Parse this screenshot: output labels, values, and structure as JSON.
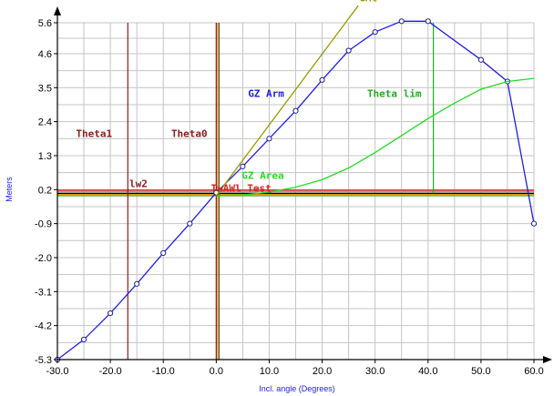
{
  "chart_data": {
    "type": "line",
    "xlabel": "Incl. angle (Degrees)",
    "ylabel": "Meters",
    "xlim": [
      -30,
      60
    ],
    "ylim": [
      -5.3,
      5.6
    ],
    "grid": true,
    "x_ticks": [
      "-30.0",
      "-20.0",
      "-10.0",
      "0.0",
      "10.0",
      "20.0",
      "30.0",
      "40.0",
      "50.0",
      "60.0"
    ],
    "y_ticks": [
      "-5.3",
      "-4.2",
      "-3.1",
      "-2.0",
      "-0.9",
      "0.2",
      "1.3",
      "2.4",
      "3.5",
      "4.6",
      "5.6"
    ],
    "series": [
      {
        "name": "GZ Arm",
        "color": "#1f1fe6",
        "markers": true,
        "x": [
          -30,
          -25,
          -20,
          -15,
          -10,
          -5,
          0,
          5,
          10,
          15,
          20,
          25,
          30,
          35,
          40,
          50,
          55,
          60
        ],
        "y": [
          -5.3,
          -4.65,
          -3.8,
          -2.85,
          -1.85,
          -0.9,
          0.1,
          0.95,
          1.85,
          2.75,
          3.75,
          4.7,
          5.3,
          5.65,
          5.65,
          4.4,
          3.7,
          -0.9
        ]
      },
      {
        "name": "GZ Area",
        "color": "#22dd22",
        "markers": false,
        "x": [
          0,
          5,
          10,
          15,
          20,
          25,
          30,
          35,
          40,
          45,
          50,
          55,
          60
        ],
        "y": [
          0.0,
          0.03,
          0.12,
          0.28,
          0.52,
          0.9,
          1.4,
          1.95,
          2.5,
          3.0,
          3.45,
          3.7,
          3.8
        ]
      },
      {
        "name": "GMt",
        "color": "#999900",
        "markers": false,
        "x": [
          0,
          26.8
        ],
        "y": [
          0.0,
          6.15
        ]
      }
    ],
    "vertical_lines": [
      {
        "name": "Theta1",
        "x": -16.7,
        "color": "#8b1a1a"
      },
      {
        "name": "Theta0",
        "x": 0.0,
        "color": "#8b1a1a"
      },
      {
        "name": "Theta lim",
        "x": 41.0,
        "color": "#22aa22"
      },
      {
        "name": "axis-0",
        "x": 0.3,
        "color": "#cc7700"
      },
      {
        "name": "axis-1",
        "x": 0.55,
        "color": "#556b2f"
      }
    ],
    "horizontal_lines": [
      {
        "name": "lw2",
        "y": 0.18,
        "color": "#dd2222"
      },
      {
        "name": "lw1",
        "y": 0.14,
        "color": "#d48a8a"
      },
      {
        "name": "black",
        "y": 0.08,
        "color": "#000000"
      },
      {
        "name": "orange",
        "y": 0.04,
        "color": "#dd9900"
      },
      {
        "name": "green",
        "y": 0.0,
        "color": "#66aa66"
      }
    ],
    "annotations": [
      {
        "text": "GMt",
        "x": 27.0,
        "y": 6.3,
        "color": "#999900"
      },
      {
        "text": "GZ Arm",
        "x": 6.0,
        "y": 3.2,
        "color": "#1f1fe6"
      },
      {
        "text": "Theta lim",
        "x": 28.5,
        "y": 3.2,
        "color": "#22aa22"
      },
      {
        "text": "Theta1",
        "x": -26.5,
        "y": 1.9,
        "color": "#8b1a1a"
      },
      {
        "text": "Theta0",
        "x": -8.5,
        "y": 1.9,
        "color": "#8b1a1a"
      },
      {
        "text": "GZ Area",
        "x": 4.8,
        "y": 0.55,
        "color": "#22dd22"
      },
      {
        "text": "lw2",
        "x": -16.4,
        "y": 0.28,
        "color": "#8b1a1a"
      },
      {
        "text": "TwAWl Test",
        "x": -1.0,
        "y": 0.14,
        "color": "#dd2222"
      }
    ]
  }
}
